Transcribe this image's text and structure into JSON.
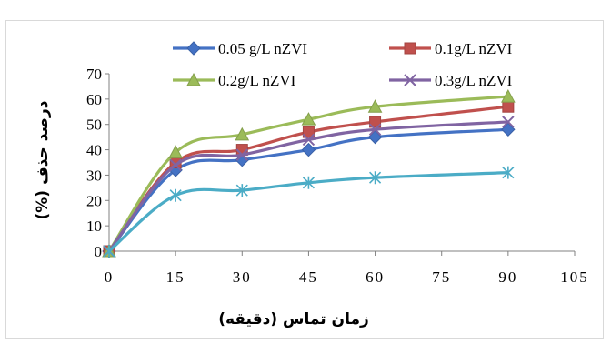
{
  "chart_data": {
    "type": "line",
    "title": "",
    "xlabel": "زمان تماس (دقیقه)",
    "ylabel": "درصد حذف (%)",
    "xlim": [
      0,
      105
    ],
    "ylim": [
      0,
      70
    ],
    "x_ticks": [
      0,
      15,
      30,
      45,
      60,
      75,
      90,
      105
    ],
    "y_ticks": [
      0,
      10,
      20,
      30,
      40,
      50,
      60,
      70
    ],
    "grid": false,
    "legend_position": "top",
    "x": [
      0,
      15,
      30,
      45,
      60,
      90
    ],
    "series": [
      {
        "name": "0.05 g/L nZVI",
        "color": "#4472C4",
        "marker": "diamond",
        "values": [
          0,
          32,
          36,
          40,
          45,
          48
        ]
      },
      {
        "name": "0.1g/L nZVI",
        "color": "#C0504D",
        "marker": "square",
        "values": [
          0,
          35,
          40,
          47,
          51,
          57
        ]
      },
      {
        "name": "0.2g/L nZVI",
        "color": "#9BBB59",
        "marker": "triangle",
        "values": [
          0,
          39,
          46,
          52,
          57,
          61
        ]
      },
      {
        "name": "0.3g/L nZVI",
        "color": "#8064A2",
        "marker": "x",
        "values": [
          0,
          34,
          38,
          44,
          48,
          51
        ]
      },
      {
        "name": "",
        "color": "#4BACC6",
        "marker": "star",
        "values": [
          0,
          22,
          24,
          27,
          29,
          31
        ]
      }
    ]
  }
}
